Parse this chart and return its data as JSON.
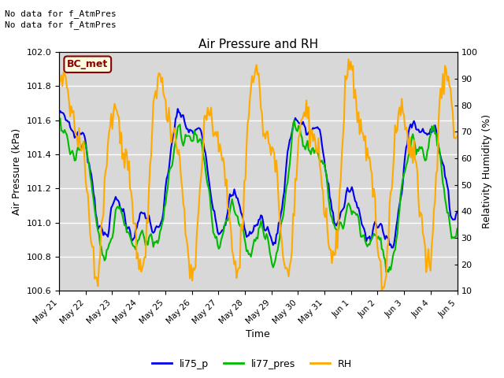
{
  "title": "Air Pressure and RH",
  "xlabel": "Time",
  "ylabel_left": "Air Pressure (kPa)",
  "ylabel_right": "Relativity Humidity (%)",
  "annotation_line1": "No data for f_AtmPres",
  "annotation_line2": "No data for f_AtmPres",
  "station_label": "BC_met",
  "ylim_left": [
    100.6,
    102.0
  ],
  "ylim_right": [
    10,
    100
  ],
  "yticks_left": [
    100.6,
    100.8,
    101.0,
    101.2,
    101.4,
    101.6,
    101.8,
    102.0
  ],
  "yticks_right": [
    10,
    20,
    30,
    40,
    50,
    60,
    70,
    80,
    90,
    100
  ],
  "xtick_labels": [
    "May 21",
    "May 22",
    "May 23",
    "May 24",
    "May 25",
    "May 26",
    "May 27",
    "May 28",
    "May 29",
    "May 30",
    "May 31",
    "Jun 1",
    "Jun 2",
    "Jun 3",
    "Jun 4",
    "Jun 5"
  ],
  "color_li75": "#0000ee",
  "color_li77": "#00bb00",
  "color_rh": "#ffaa00",
  "legend_labels": [
    "li75_p",
    "li77_pres",
    "RH"
  ],
  "linewidth": 1.5,
  "plot_bg": "#d8d8d8"
}
